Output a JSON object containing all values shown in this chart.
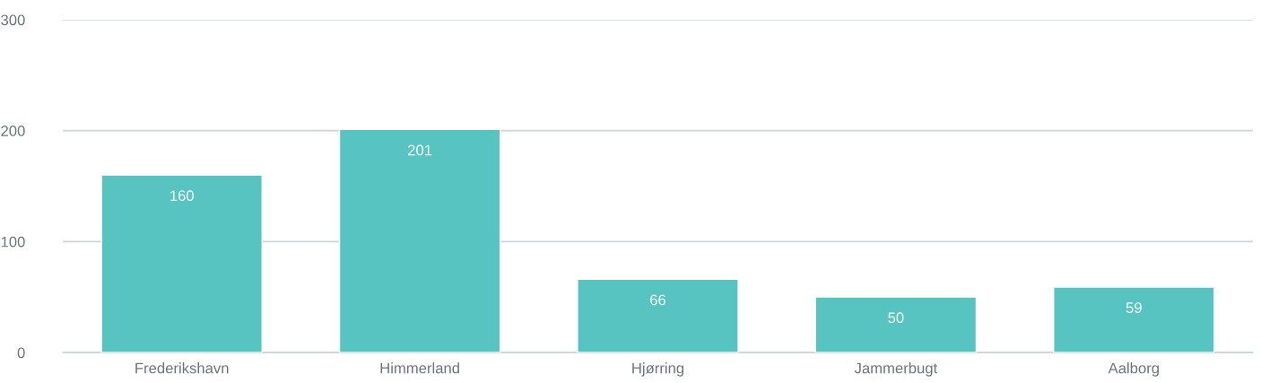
{
  "chart_data": {
    "type": "bar",
    "categories": [
      "Frederikshavn",
      "Himmerland",
      "Hjørring",
      "Jammerbugt",
      "Aalborg"
    ],
    "values": [
      160,
      201,
      66,
      50,
      59
    ],
    "color": "#57c4c1",
    "ylim": [
      0,
      300
    ],
    "yticks": [
      0,
      100,
      200,
      300
    ],
    "grid": "y",
    "data_labels": true
  }
}
